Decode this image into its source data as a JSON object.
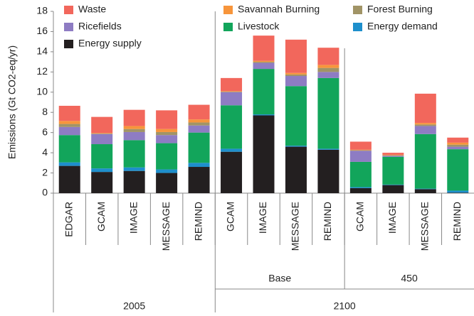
{
  "chart_data": {
    "type": "stacked-bar",
    "ylabel": "Emissions (Gt CO2-eq/yr)",
    "ylim": [
      0,
      18
    ],
    "yticks": [
      0,
      2,
      4,
      6,
      8,
      10,
      12,
      14,
      16,
      18
    ],
    "category_groups": [
      {
        "name": "2005",
        "subgroups": [
          {
            "name": null,
            "categories": [
              "EDGAR",
              "GCAM",
              "IMAGE",
              "MESSAGE",
              "REMIND"
            ]
          }
        ]
      },
      {
        "name": "2100",
        "subgroups": [
          {
            "name": "Base",
            "categories": [
              "GCAM",
              "IMAGE",
              "MESSAGE",
              "REMIND"
            ]
          },
          {
            "name": "450",
            "categories": [
              "GCAM",
              "IMAGE",
              "MESSAGE",
              "REMIND"
            ]
          }
        ]
      }
    ],
    "series": [
      {
        "name": "Energy supply",
        "color": "#231f20",
        "values": [
          2.7,
          2.1,
          2.2,
          2.0,
          2.6,
          4.1,
          7.7,
          4.6,
          4.3,
          0.5,
          0.8,
          0.4,
          0.05
        ]
      },
      {
        "name": "Energy demand",
        "color": "#1e8fcc",
        "values": [
          0.35,
          0.35,
          0.35,
          0.35,
          0.4,
          0.3,
          0.1,
          0.1,
          0.1,
          0.1,
          0.05,
          0.05,
          0.2
        ]
      },
      {
        "name": "Livestock",
        "color": "#12a55b",
        "values": [
          2.7,
          2.4,
          2.7,
          2.6,
          3.0,
          4.3,
          4.5,
          5.9,
          7.0,
          2.5,
          2.75,
          5.4,
          4.1
        ]
      },
      {
        "name": "Ricefields",
        "color": "#8e7cc3",
        "values": [
          0.8,
          1.0,
          0.8,
          0.8,
          0.7,
          1.3,
          0.6,
          1.0,
          0.6,
          1.1,
          0.1,
          0.8,
          0.25
        ]
      },
      {
        "name": "Forest Burning",
        "color": "#a19466",
        "values": [
          0.3,
          0.05,
          0.3,
          0.3,
          0.3,
          0.05,
          0.1,
          0.15,
          0.4,
          0.05,
          0.05,
          0.15,
          0.2
        ]
      },
      {
        "name": "Savannah Burning",
        "color": "#f7953b",
        "values": [
          0.3,
          0.05,
          0.3,
          0.3,
          0.3,
          0.05,
          0.1,
          0.15,
          0.3,
          0.05,
          0.05,
          0.15,
          0.2
        ]
      },
      {
        "name": "Waste",
        "color": "#f2675c",
        "values": [
          1.5,
          1.6,
          1.6,
          1.85,
          1.45,
          1.3,
          2.5,
          3.3,
          1.7,
          0.8,
          0.2,
          2.9,
          0.5
        ]
      }
    ]
  }
}
